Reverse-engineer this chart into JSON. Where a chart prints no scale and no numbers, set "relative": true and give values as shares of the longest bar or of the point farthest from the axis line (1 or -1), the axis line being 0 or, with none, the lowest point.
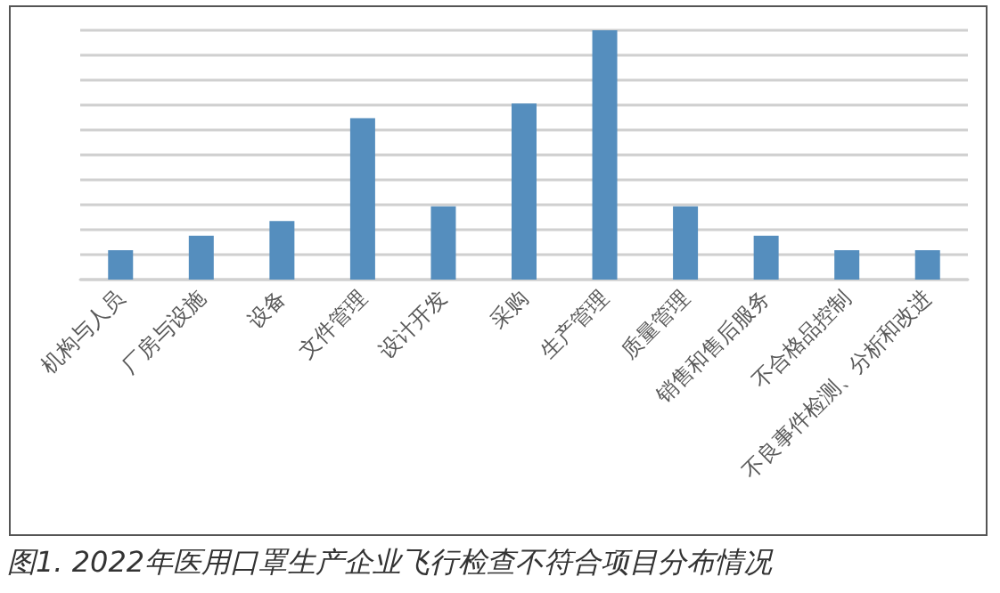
{
  "chart_data": {
    "type": "bar",
    "title": "图1. 2022年医用口罩生产企业飞行检查不符合项目分布情况",
    "categories": [
      "机构与人员",
      "厂房与设施",
      "设备",
      "文件管理",
      "设计开发",
      "采购",
      "生产管理",
      "质量管理",
      "销售和售后服务",
      "不合格品控制",
      "不良事件检测、分析和改进"
    ],
    "values": [
      0.118,
      0.176,
      0.235,
      0.647,
      0.294,
      0.706,
      1,
      0.294,
      0.176,
      0.118,
      0.118
    ],
    "color": "#558ebe",
    "relative": true,
    "grid": "y"
  }
}
